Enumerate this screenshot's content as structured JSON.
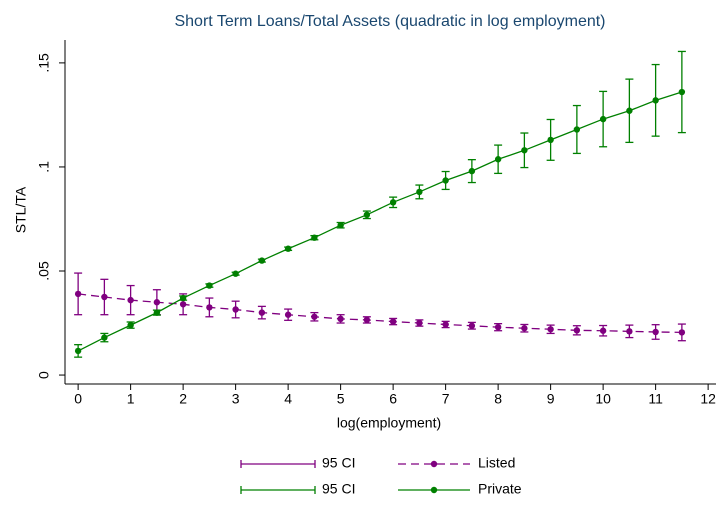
{
  "chart_data": {
    "type": "line",
    "title": "Short Term Loans/Total Assets (quadratic in log employment)",
    "x_label": "log(employment)",
    "y_label": "STL/TA",
    "x": [
      0,
      0.5,
      1,
      1.5,
      2,
      2.5,
      3,
      3.5,
      4,
      4.5,
      5,
      5.5,
      6,
      6.5,
      7,
      7.5,
      8,
      8.5,
      9,
      9.5,
      10,
      10.5,
      11,
      11.5
    ],
    "series": [
      {
        "name": "Listed",
        "ci_name": "95 CI",
        "color": "#800080",
        "dashed": true,
        "values": [
          0.039,
          0.0375,
          0.036,
          0.035,
          0.034,
          0.0325,
          0.0315,
          0.03,
          0.029,
          0.028,
          0.027,
          0.0265,
          0.0257,
          0.025,
          0.0243,
          0.0237,
          0.023,
          0.0225,
          0.022,
          0.0215,
          0.0213,
          0.021,
          0.0207,
          0.0205
        ],
        "ci_lower": [
          0.029,
          0.029,
          0.029,
          0.029,
          0.029,
          0.028,
          0.0275,
          0.027,
          0.0263,
          0.026,
          0.025,
          0.025,
          0.0242,
          0.0235,
          0.0228,
          0.0221,
          0.0213,
          0.0207,
          0.02,
          0.0193,
          0.0188,
          0.018,
          0.0172,
          0.0165
        ],
        "ci_upper": [
          0.049,
          0.046,
          0.043,
          0.041,
          0.039,
          0.037,
          0.0355,
          0.033,
          0.0317,
          0.03,
          0.029,
          0.028,
          0.0272,
          0.0265,
          0.0258,
          0.0253,
          0.0247,
          0.0243,
          0.024,
          0.0237,
          0.0238,
          0.024,
          0.0242,
          0.0245
        ]
      },
      {
        "name": "Private",
        "ci_name": "95 CI",
        "color": "#008000",
        "dashed": false,
        "values": [
          0.0116,
          0.018,
          0.024,
          0.03,
          0.037,
          0.043,
          0.0487,
          0.055,
          0.0607,
          0.066,
          0.072,
          0.077,
          0.083,
          0.088,
          0.0935,
          0.098,
          0.1037,
          0.108,
          0.113,
          0.118,
          0.123,
          0.127,
          0.132,
          0.136
        ],
        "ci_lower": [
          0.0086,
          0.016,
          0.0225,
          0.0288,
          0.036,
          0.0422,
          0.048,
          0.0543,
          0.0599,
          0.065,
          0.0707,
          0.0752,
          0.0805,
          0.0847,
          0.0892,
          0.0925,
          0.0969,
          0.0997,
          0.1032,
          0.1065,
          0.1097,
          0.1118,
          0.1148,
          0.1165
        ],
        "ci_upper": [
          0.0146,
          0.02,
          0.0255,
          0.0312,
          0.038,
          0.0438,
          0.0494,
          0.0557,
          0.0615,
          0.067,
          0.0733,
          0.0788,
          0.0855,
          0.0913,
          0.0978,
          0.1035,
          0.1105,
          0.1163,
          0.1228,
          0.1295,
          0.1363,
          0.1422,
          0.1492,
          0.1555
        ]
      }
    ],
    "xlim": [
      -0.25,
      12.15
    ],
    "ylim": [
      -0.0043,
      0.161
    ],
    "xticks": [
      0,
      1,
      2,
      3,
      4,
      5,
      6,
      7,
      8,
      9,
      10,
      11,
      12
    ],
    "yticks": [
      0,
      {
        "value": 0.05,
        "label": ".05"
      },
      {
        "value": 0.1,
        "label": ".1"
      },
      {
        "value": 0.15,
        "label": ".15"
      }
    ],
    "grid": false
  }
}
